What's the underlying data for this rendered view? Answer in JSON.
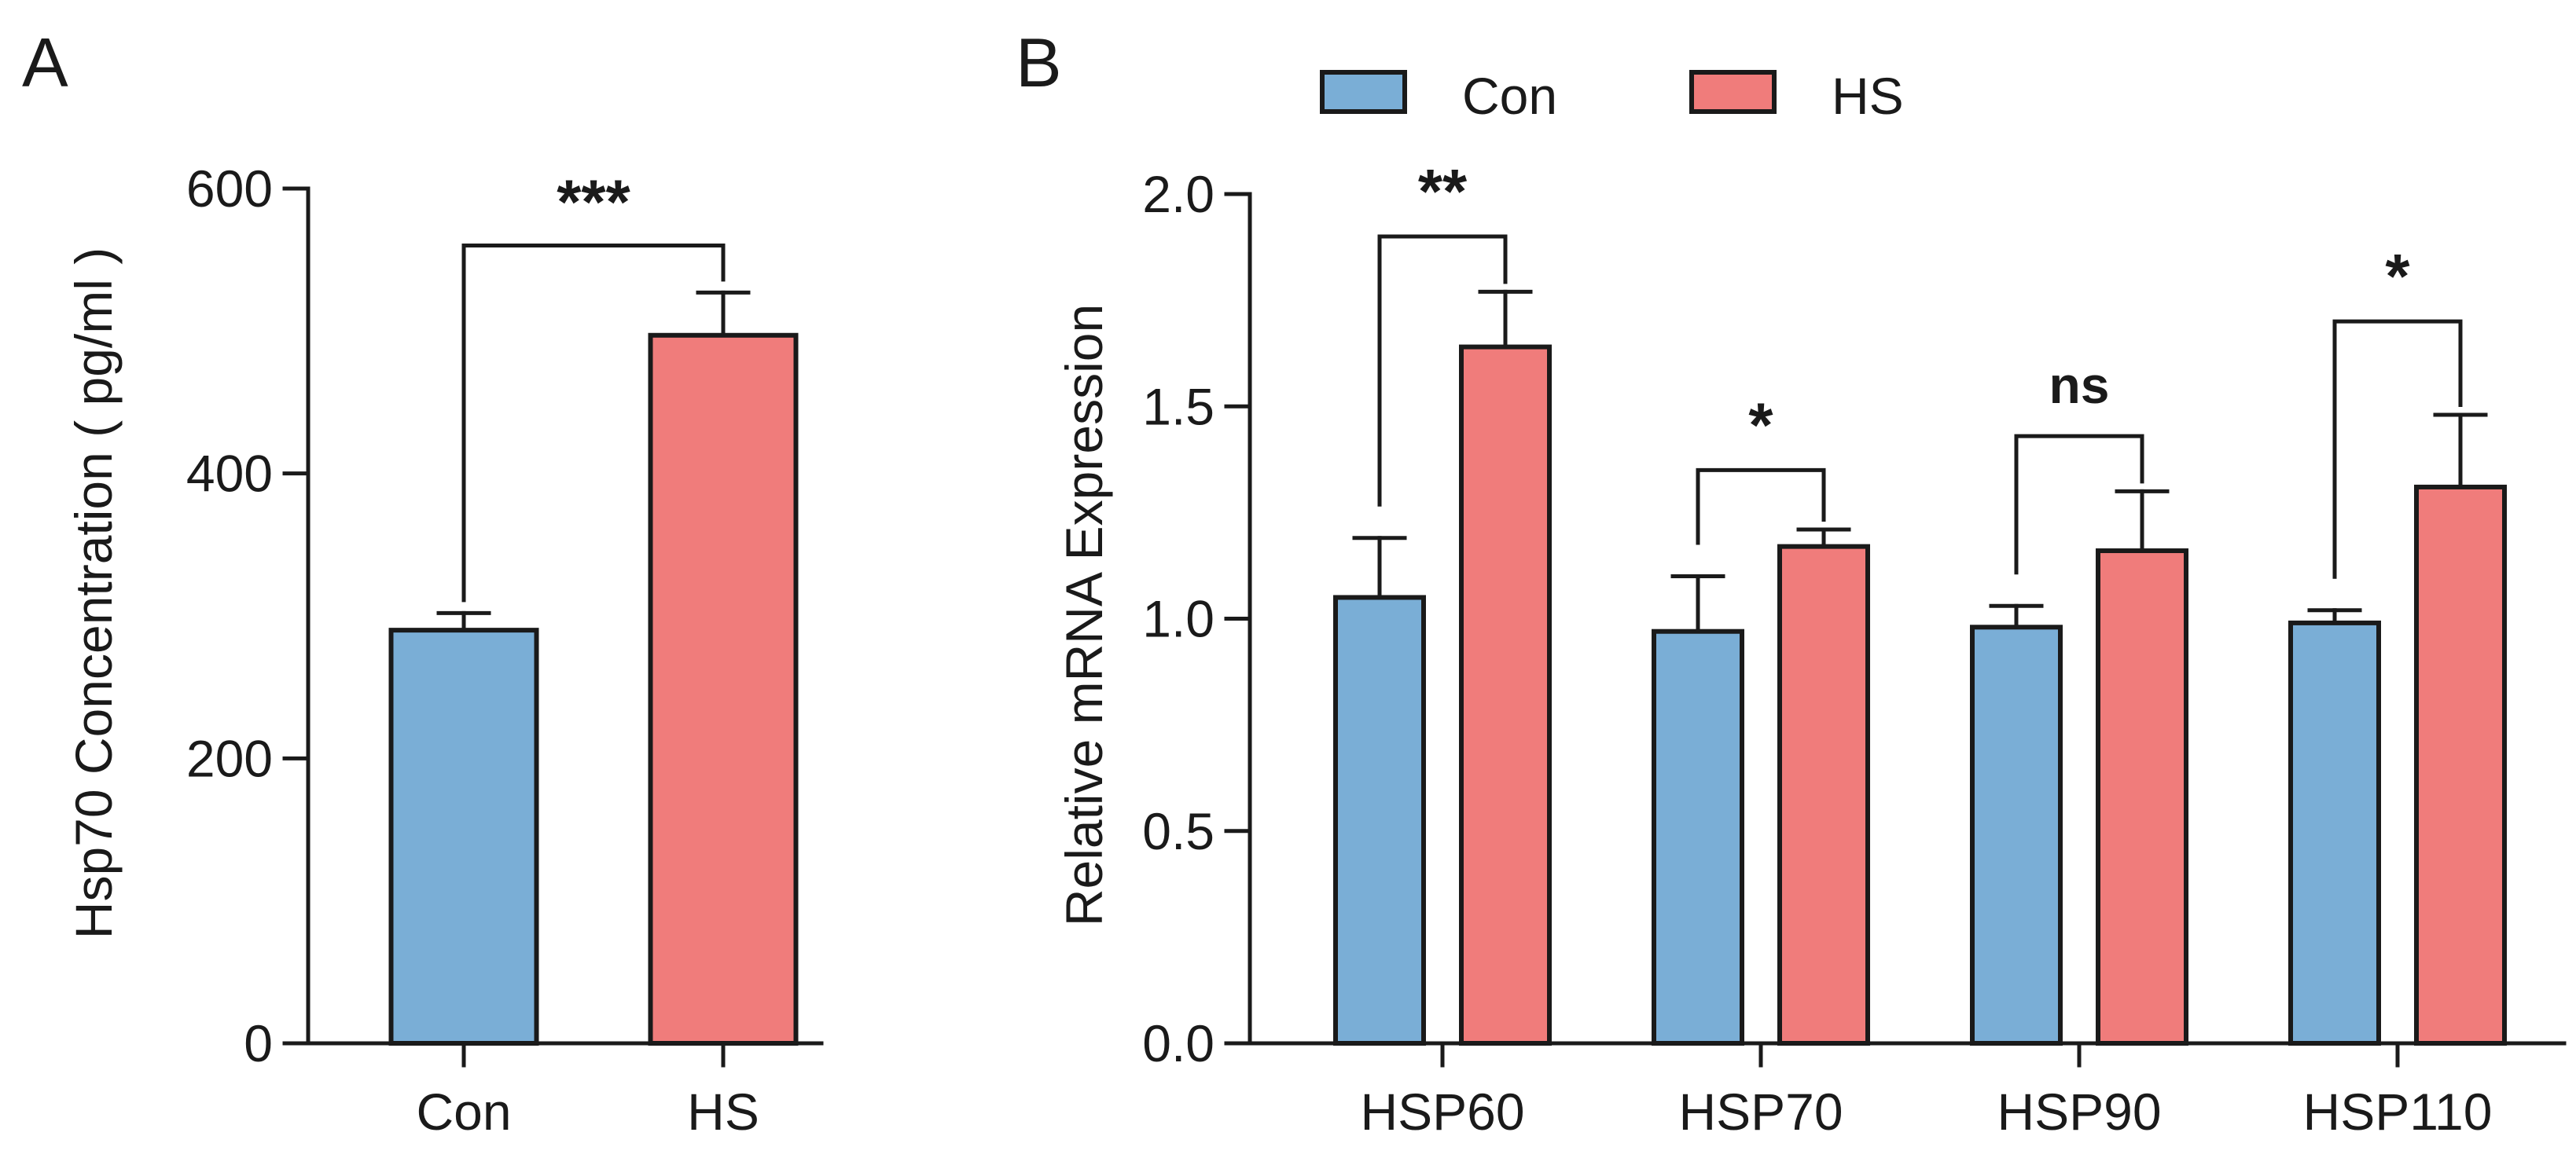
{
  "chart_data": [
    {
      "type": "bar",
      "panel_label": "A",
      "categories": [
        "Con",
        "HS"
      ],
      "values": [
        290,
        497
      ],
      "error": [
        12,
        30
      ],
      "colors": [
        "#7aaed6",
        "#f07c7b"
      ],
      "ylabel": "Hsp70 Concentration ( pg/ml )",
      "xlabel": "",
      "ylim": [
        0,
        600
      ],
      "yticks": [
        0,
        200,
        400,
        600
      ],
      "grid": false,
      "significance": [
        {
          "from": 0,
          "to": 1,
          "label": "***",
          "y": 560
        }
      ]
    },
    {
      "type": "bar",
      "panel_label": "B",
      "categories": [
        "HSP60",
        "HSP70",
        "HSP90",
        "HSP110"
      ],
      "series": [
        {
          "name": "Con",
          "color": "#7aaed6",
          "values": [
            1.05,
            0.97,
            0.98,
            0.99
          ],
          "error": [
            0.14,
            0.13,
            0.05,
            0.03
          ]
        },
        {
          "name": "HS",
          "color": "#f07c7b",
          "values": [
            1.64,
            1.17,
            1.16,
            1.31
          ],
          "error": [
            0.13,
            0.04,
            0.14,
            0.17
          ]
        }
      ],
      "ylabel": "Relative mRNA Expression",
      "xlabel": "",
      "ylim": [
        0,
        2.0
      ],
      "yticks": [
        "0.0",
        "0.5",
        "1.0",
        "1.5",
        "2.0"
      ],
      "grid": false,
      "legend": {
        "position": "top",
        "entries": [
          "Con",
          "HS"
        ]
      },
      "significance": [
        {
          "category": 0,
          "label": "**",
          "y": 1.9
        },
        {
          "category": 1,
          "label": "*",
          "y": 1.35
        },
        {
          "category": 2,
          "label": "ns",
          "y": 1.43
        },
        {
          "category": 3,
          "label": "*",
          "y": 1.7
        }
      ]
    }
  ]
}
